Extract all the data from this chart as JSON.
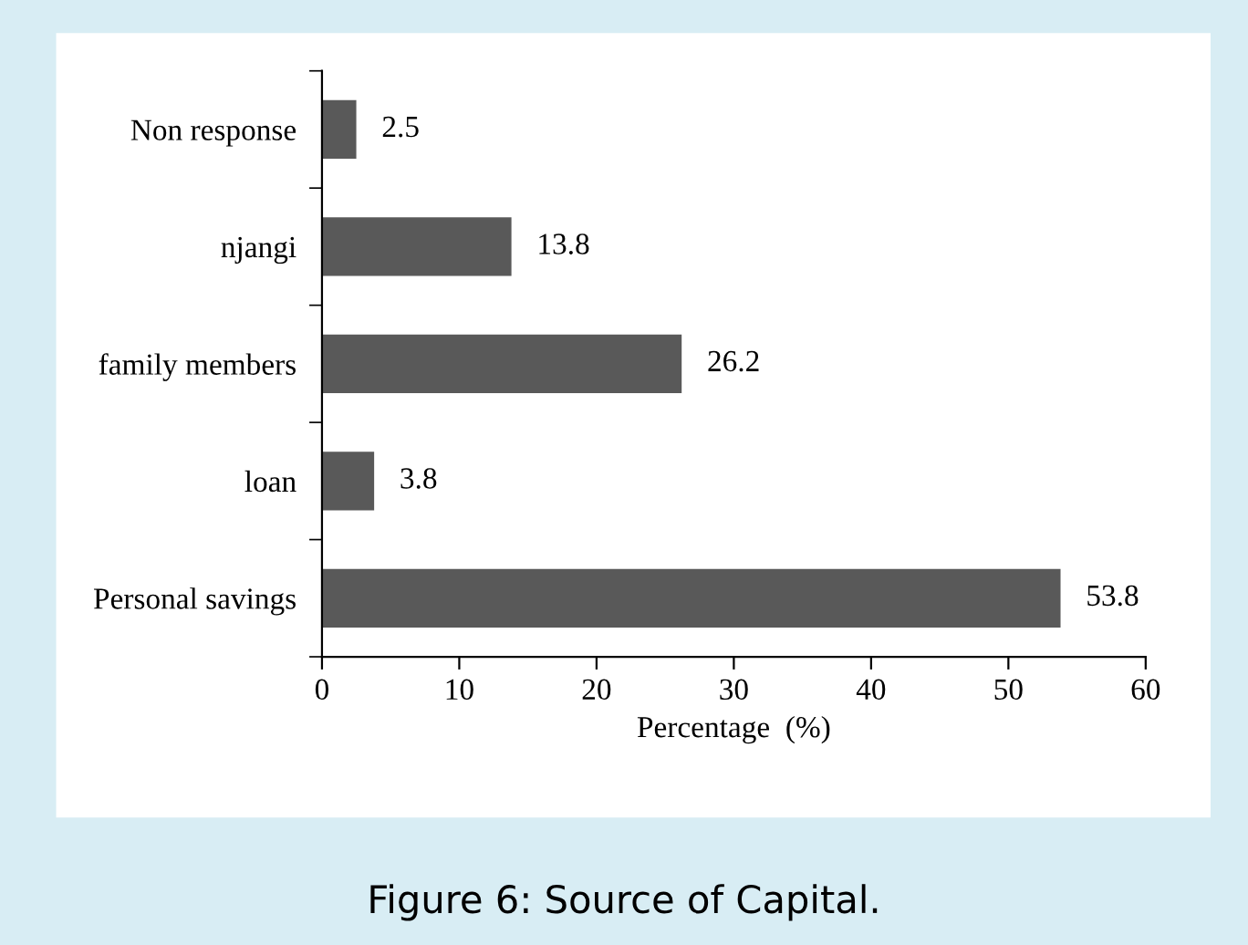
{
  "chart_data": {
    "type": "bar",
    "orientation": "horizontal",
    "categories": [
      "Non response",
      "njangi",
      "family members",
      "loan",
      "Personal savings"
    ],
    "values": [
      2.5,
      13.8,
      26.2,
      3.8,
      53.8
    ],
    "color": "#595959",
    "xlim": [
      0,
      60
    ],
    "xticks": [
      0,
      10,
      20,
      30,
      40,
      50,
      60
    ],
    "xlabel": "Percentage  (%)",
    "data_labels": true,
    "grid": false,
    "legend": false,
    "annotations": [
      "Figure 6: Source of Capital."
    ]
  }
}
